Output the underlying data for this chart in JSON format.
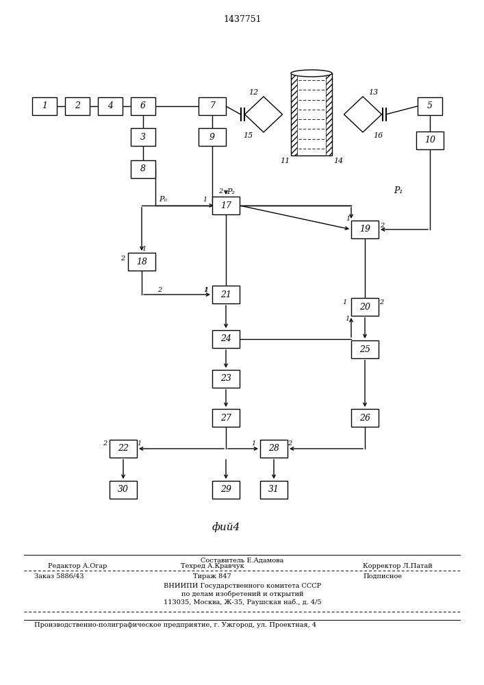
{
  "title": "1437751",
  "fig_caption": "фий4",
  "bg_color": "#ffffff",
  "footer": {
    "line1_center": "Составитель Е.Адамова",
    "line2_left": "Редактор А.Огар",
    "line2_center": "Техред А.Кравчук",
    "line2_right": "Корректор Л.Патай",
    "line3_left": "Заказ 5886/43",
    "line3_center": "Тираж 847",
    "line3_right": "Подписное",
    "line4": "ВНИИПИ Государственного комитета СССР",
    "line5": "по делам изобретений и открытий",
    "line6": "113035, Москва, Ж-35, Раушская наб., д. 4/5",
    "line7": "Производственно-полиграфическое предприятие, г. Ужгород, ул. Проектная, 4"
  }
}
